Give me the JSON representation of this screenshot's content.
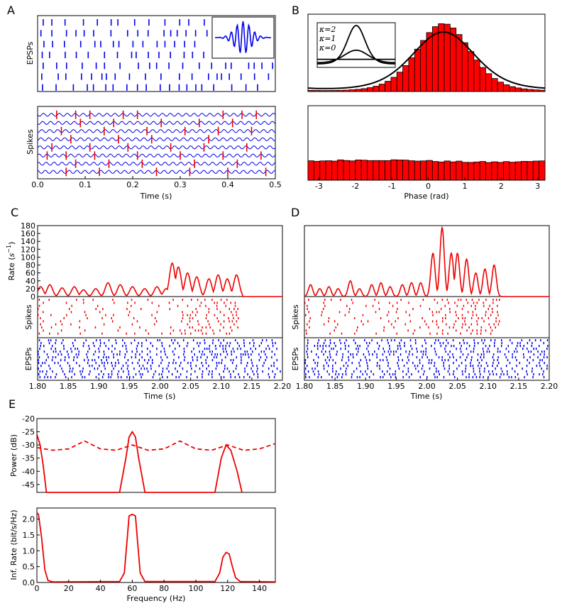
{
  "figure": {
    "panel_letters": [
      "A",
      "B",
      "C",
      "D",
      "E"
    ],
    "colors": {
      "spike_red": "#ee0000",
      "bar_red": "#ff0000",
      "wave_blue": "#0000ee",
      "axis_black": "#000000"
    }
  },
  "chart_data": [
    {
      "id": "A_top",
      "type": "raster",
      "ylabel": "EPSPs",
      "rows": 7,
      "xlim": [
        0,
        0.5
      ],
      "inset": {
        "type": "line",
        "description_kind": "gabor-wavelet"
      }
    },
    {
      "id": "A_bottom",
      "type": "line",
      "ylabel": "Spikes",
      "xlabel": "Time (s)",
      "xlim": [
        0,
        0.5
      ],
      "xticks": [
        "0.0",
        "0.1",
        "0.2",
        "0.3",
        "0.4",
        "0.5"
      ],
      "traces": 8,
      "oscillation_hz": 60,
      "spike_times": [
        [
          0.04,
          0.08,
          0.11,
          0.18,
          0.21,
          0.39,
          0.43,
          0.46
        ],
        [
          0.09,
          0.16,
          0.26,
          0.34,
          0.41
        ],
        [
          0.05,
          0.14,
          0.23,
          0.31,
          0.38,
          0.45
        ],
        [
          0.07,
          0.17,
          0.24,
          0.36
        ],
        [
          0.03,
          0.11,
          0.19,
          0.28,
          0.35,
          0.44
        ],
        [
          0.02,
          0.06,
          0.12,
          0.21,
          0.3,
          0.39,
          0.47
        ],
        [
          0.08,
          0.15,
          0.22,
          0.33,
          0.42
        ],
        [
          0.06,
          0.13,
          0.25,
          0.32,
          0.4,
          0.48
        ]
      ]
    },
    {
      "id": "B_top",
      "type": "bar",
      "title": "",
      "xlim": [
        -3.14,
        3.14
      ],
      "bin_count": 40,
      "peak_phase": 0.45,
      "bar_concentration": 2.1,
      "fit_concentration": 1.5,
      "inset": {
        "type": "line",
        "legend": [
          "κ=2",
          "κ=1",
          "κ=0"
        ],
        "kappas": [
          2,
          1,
          0
        ]
      }
    },
    {
      "id": "B_bottom",
      "type": "bar",
      "xlabel": "Phase (rad)",
      "xlim": [
        -3.3,
        3.2
      ],
      "xticks": [
        "-3",
        "-2",
        "-1",
        "0",
        "1",
        "2",
        "3"
      ],
      "xtick_values": [
        -3,
        -2,
        -1,
        0,
        1,
        2,
        3
      ],
      "bin_count": 40,
      "near_uniform": true
    },
    {
      "id": "C_rate",
      "type": "line",
      "ylabel": "Rate (s^-1)",
      "ylabel_parts": [
        "Rate (",
        "s",
        "−1",
        ")"
      ],
      "ylim": [
        0,
        180
      ],
      "yticks": [
        "180",
        "160",
        "140",
        "120",
        "100",
        "80",
        "60",
        "40",
        "20",
        "0"
      ],
      "ytick_values": [
        180,
        160,
        140,
        120,
        100,
        80,
        60,
        40,
        20,
        0
      ],
      "xlim": [
        1.8,
        2.2
      ],
      "active_until": 2.13,
      "peaks": [
        [
          1.805,
          25
        ],
        [
          1.82,
          30
        ],
        [
          1.84,
          22
        ],
        [
          1.86,
          25
        ],
        [
          1.875,
          17
        ],
        [
          1.895,
          20
        ],
        [
          1.915,
          35
        ],
        [
          1.935,
          30
        ],
        [
          1.955,
          25
        ],
        [
          1.975,
          20
        ],
        [
          1.995,
          25
        ],
        [
          2.01,
          20
        ],
        [
          2.02,
          85
        ],
        [
          2.03,
          75
        ],
        [
          2.045,
          60
        ],
        [
          2.06,
          50
        ],
        [
          2.08,
          45
        ],
        [
          2.095,
          55
        ],
        [
          2.11,
          45
        ],
        [
          2.125,
          55
        ]
      ]
    },
    {
      "id": "C_spikes",
      "type": "raster",
      "ylabel": "Spikes",
      "rows": 12,
      "xlim": [
        1.8,
        2.2
      ],
      "active_until": 2.13,
      "burst_start": 2.02
    },
    {
      "id": "C_epsps",
      "type": "raster",
      "ylabel": "EPSPs",
      "xlabel": "Time (s)",
      "rows": 14,
      "xlim": [
        1.8,
        2.2
      ],
      "xticks": [
        "1.80",
        "1.85",
        "1.90",
        "1.95",
        "2.00",
        "2.05",
        "2.10",
        "2.15",
        "2.20"
      ],
      "xtick_values": [
        1.8,
        1.85,
        1.9,
        1.95,
        2.0,
        2.05,
        2.1,
        2.15,
        2.2
      ]
    },
    {
      "id": "D_rate",
      "type": "line",
      "ylim": [
        0,
        180
      ],
      "xlim": [
        1.8,
        2.2
      ],
      "peaks": [
        [
          1.81,
          30
        ],
        [
          1.825,
          20
        ],
        [
          1.84,
          25
        ],
        [
          1.855,
          20
        ],
        [
          1.875,
          40
        ],
        [
          1.89,
          20
        ],
        [
          1.91,
          30
        ],
        [
          1.925,
          35
        ],
        [
          1.94,
          25
        ],
        [
          1.96,
          30
        ],
        [
          1.975,
          35
        ],
        [
          1.99,
          35
        ],
        [
          2.01,
          110
        ],
        [
          2.025,
          175
        ],
        [
          2.04,
          110
        ],
        [
          2.05,
          110
        ],
        [
          2.065,
          95
        ],
        [
          2.08,
          60
        ],
        [
          2.095,
          70
        ],
        [
          2.11,
          80
        ]
      ]
    },
    {
      "id": "D_spikes",
      "type": "raster",
      "ylabel": "Spikes",
      "rows": 12,
      "xlim": [
        1.8,
        2.2
      ]
    },
    {
      "id": "D_epsps",
      "type": "raster",
      "ylabel": "EPSPs",
      "xlabel": "Time (s)",
      "rows": 14,
      "xlim": [
        1.8,
        2.2
      ],
      "xticks": [
        "1.80",
        "1.85",
        "1.90",
        "1.95",
        "2.00",
        "2.05",
        "2.10",
        "2.15",
        "2.20"
      ],
      "xtick_values": [
        1.8,
        1.85,
        1.9,
        1.95,
        2.0,
        2.05,
        2.1,
        2.15,
        2.2
      ]
    },
    {
      "id": "E_power",
      "type": "line",
      "ylabel": "Power (dB)",
      "ylim": [
        -48,
        -20
      ],
      "yticks": [
        "-20",
        "-25",
        "-30",
        "-35",
        "-40",
        "-45"
      ],
      "ytick_values": [
        -20,
        -25,
        -30,
        -35,
        -40,
        -45
      ],
      "xlim": [
        0,
        150
      ],
      "series": [
        {
          "name": "solid",
          "style": "solid",
          "points": [
            [
              0,
              -26
            ],
            [
              2,
              -30
            ],
            [
              4,
              -38
            ],
            [
              6,
              -48
            ],
            [
              52,
              -48
            ],
            [
              56,
              -35
            ],
            [
              58,
              -27
            ],
            [
              60,
              -25
            ],
            [
              62,
              -27
            ],
            [
              64,
              -35
            ],
            [
              68,
              -48
            ],
            [
              112,
              -48
            ],
            [
              116,
              -35
            ],
            [
              119,
              -30
            ],
            [
              122,
              -32
            ],
            [
              126,
              -40
            ],
            [
              129,
              -48
            ]
          ]
        },
        {
          "name": "dashed",
          "style": "dashed",
          "points": [
            [
              0,
              -31
            ],
            [
              10,
              -32
            ],
            [
              20,
              -31.5
            ],
            [
              30,
              -28.5
            ],
            [
              40,
              -31.5
            ],
            [
              50,
              -32
            ],
            [
              60,
              -30
            ],
            [
              70,
              -32
            ],
            [
              80,
              -31.5
            ],
            [
              90,
              -28.5
            ],
            [
              100,
              -31.5
            ],
            [
              110,
              -32
            ],
            [
              120,
              -30
            ],
            [
              130,
              -32
            ],
            [
              140,
              -31.5
            ],
            [
              150,
              -29.5
            ]
          ]
        }
      ]
    },
    {
      "id": "E_info",
      "type": "line",
      "ylabel": "Inf. Rate (bit/s/Hz)",
      "xlabel": "Frequency (Hz)",
      "ylim": [
        0,
        2.35
      ],
      "yticks": [
        "2.0",
        "1.5",
        "1.0",
        "0.5",
        "0.0"
      ],
      "ytick_values": [
        2.0,
        1.5,
        1.0,
        0.5,
        0.0
      ],
      "xlim": [
        0,
        150
      ],
      "xticks": [
        "0",
        "20",
        "40",
        "60",
        "80",
        "100",
        "120",
        "140"
      ],
      "xtick_values": [
        0,
        20,
        40,
        60,
        80,
        100,
        120,
        140
      ],
      "points": [
        [
          0,
          2.2
        ],
        [
          1,
          2.15
        ],
        [
          3,
          1.4
        ],
        [
          5,
          0.4
        ],
        [
          7,
          0.06
        ],
        [
          10,
          0.02
        ],
        [
          52,
          0.03
        ],
        [
          55,
          0.3
        ],
        [
          57,
          1.5
        ],
        [
          58,
          2.1
        ],
        [
          60,
          2.15
        ],
        [
          62,
          2.1
        ],
        [
          63,
          1.5
        ],
        [
          65,
          0.3
        ],
        [
          68,
          0.03
        ],
        [
          112,
          0.03
        ],
        [
          115,
          0.3
        ],
        [
          117,
          0.8
        ],
        [
          119,
          0.95
        ],
        [
          121,
          0.9
        ],
        [
          123,
          0.5
        ],
        [
          125,
          0.15
        ],
        [
          128,
          0.03
        ],
        [
          150,
          0.02
        ]
      ]
    }
  ]
}
